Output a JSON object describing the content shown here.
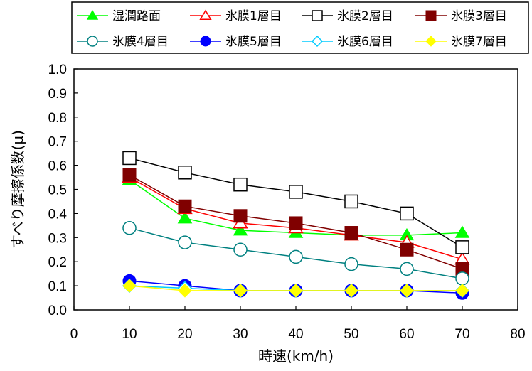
{
  "chart_data": {
    "type": "line",
    "xlabel": "時速(km/h)",
    "ylabel": "すべり摩擦係数(μ)",
    "xlim": [
      0,
      80
    ],
    "ylim": [
      0,
      1.0
    ],
    "x_ticks": [
      "0",
      "10",
      "20",
      "30",
      "40",
      "50",
      "60",
      "70",
      "80"
    ],
    "y_ticks": [
      "0.0",
      "0.1",
      "0.2",
      "0.3",
      "0.4",
      "0.5",
      "0.6",
      "0.7",
      "0.8",
      "0.9",
      "1.0"
    ],
    "grid": false,
    "legend_position": "top",
    "x": [
      10,
      20,
      30,
      40,
      50,
      60,
      70
    ],
    "series": [
      {
        "name": "湿潤路面",
        "color": "#00ff00",
        "marker": "triangle-filled",
        "values": [
          0.54,
          0.38,
          0.33,
          0.32,
          0.31,
          0.31,
          0.32
        ]
      },
      {
        "name": "氷膜1層目",
        "color": "#ff0000",
        "marker": "triangle-open",
        "values": [
          0.55,
          0.42,
          0.36,
          0.34,
          0.31,
          0.28,
          0.21
        ]
      },
      {
        "name": "氷膜2層目",
        "color": "#000000",
        "marker": "square-open",
        "values": [
          0.63,
          0.57,
          0.52,
          0.49,
          0.45,
          0.4,
          0.26
        ]
      },
      {
        "name": "氷膜3層目",
        "color": "#800000",
        "marker": "square-filled",
        "values": [
          0.56,
          0.43,
          0.39,
          0.36,
          0.32,
          0.25,
          0.17
        ]
      },
      {
        "name": "氷膜4層目",
        "color": "#008080",
        "marker": "circle-open",
        "values": [
          0.34,
          0.28,
          0.25,
          0.22,
          0.19,
          0.17,
          0.13
        ]
      },
      {
        "name": "氷膜5層目",
        "color": "#0000ff",
        "marker": "circle-filled",
        "values": [
          0.12,
          0.1,
          0.08,
          0.08,
          0.08,
          0.08,
          0.07
        ]
      },
      {
        "name": "氷膜6層目",
        "color": "#00ccff",
        "marker": "diamond-open",
        "values": [
          0.1,
          0.09,
          0.08,
          0.08,
          0.08,
          0.08,
          0.08
        ]
      },
      {
        "name": "氷膜7層目",
        "color": "#ffff00",
        "marker": "diamond-filled",
        "values": [
          0.1,
          0.08,
          0.08,
          0.08,
          0.08,
          0.08,
          0.08
        ]
      }
    ]
  }
}
